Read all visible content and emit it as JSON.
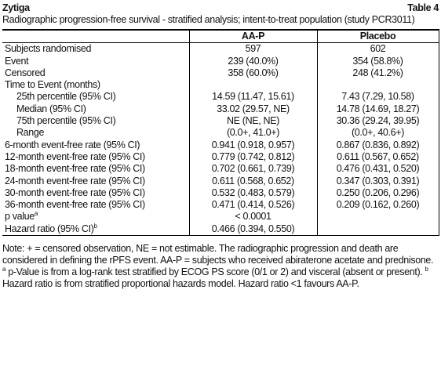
{
  "header": {
    "title": "Zytiga",
    "table_label": "Table 4",
    "caption": "Radiographic progression-free survival - stratified analysis; intent-to-treat population (study PCR3011)"
  },
  "table": {
    "columns": [
      "AA-P",
      "Placebo"
    ],
    "rows": [
      {
        "label": "Subjects randomised",
        "cells": [
          "597",
          "602"
        ]
      },
      {
        "label": "Event",
        "cells": [
          "239 (40.0%)",
          "354 (58.8%)"
        ]
      },
      {
        "label": "Censored",
        "cells": [
          "358 (60.0%)",
          "248 (41.2%)"
        ]
      },
      {
        "label": "Time to Event (months)",
        "cells": []
      },
      {
        "label": "25th percentile (95% CI)",
        "indent": true,
        "cells": [
          "14.59 (11.47, 15.61)",
          "7.43 (7.29, 10.58)"
        ]
      },
      {
        "label": "Median (95% CI)",
        "indent": true,
        "cells": [
          "33.02 (29.57, NE)",
          "14.78 (14.69, 18.27)"
        ]
      },
      {
        "label": "75th percentile (95% CI)",
        "indent": true,
        "cells": [
          "NE (NE, NE)",
          "30.36 (29.24, 39.95)"
        ]
      },
      {
        "label": "Range",
        "indent": true,
        "cells": [
          "(0.0+, 41.0+)",
          "(0.0+, 40.6+)"
        ]
      },
      {
        "label": "6-month event-free rate (95% CI)",
        "cells": [
          "0.941 (0.918, 0.957)",
          "0.867 (0.836, 0.892)"
        ]
      },
      {
        "label": "12-month event-free rate (95% CI)",
        "cells": [
          "0.779 (0.742, 0.812)",
          "0.611 (0.567, 0.652)"
        ]
      },
      {
        "label": "18-month event-free rate (95% CI)",
        "cells": [
          "0.702 (0.661, 0.739)",
          "0.476 (0.431, 0.520)"
        ]
      },
      {
        "label": "24-month event-free rate (95% CI)",
        "cells": [
          "0.611 (0.568, 0.652)",
          "0.347 (0.303, 0.391)"
        ]
      },
      {
        "label": "30-month event-free rate (95% CI)",
        "cells": [
          "0.532 (0.483, 0.579)",
          "0.250 (0.206, 0.296)"
        ]
      },
      {
        "label": "36-month event-free rate (95% CI)",
        "cells": [
          "0.471 (0.414, 0.526)",
          "0.209 (0.162, 0.260)"
        ]
      },
      {
        "label": "p value",
        "sup": "a",
        "cells": [
          "< 0.0001"
        ]
      },
      {
        "label": "Hazard ratio (95% CI)",
        "sup": "b",
        "cells": [
          "0.466 (0.394, 0.550)"
        ]
      }
    ]
  },
  "notes": {
    "text": "Note: + = censored observation, NE = not estimable. The radiographic progression and death are considered in defining the rPFS event. AA-P = subjects who received abiraterone acetate and prednisone.",
    "footnotes": [
      {
        "mark": "a",
        "text": "p-Value is from a log-rank test stratified by ECOG PS score (0/1 or 2) and visceral (absent or present)."
      },
      {
        "mark": "b",
        "text": "Hazard ratio is from stratified proportional hazards model. Hazard ratio <1 favours AA-P."
      }
    ]
  }
}
